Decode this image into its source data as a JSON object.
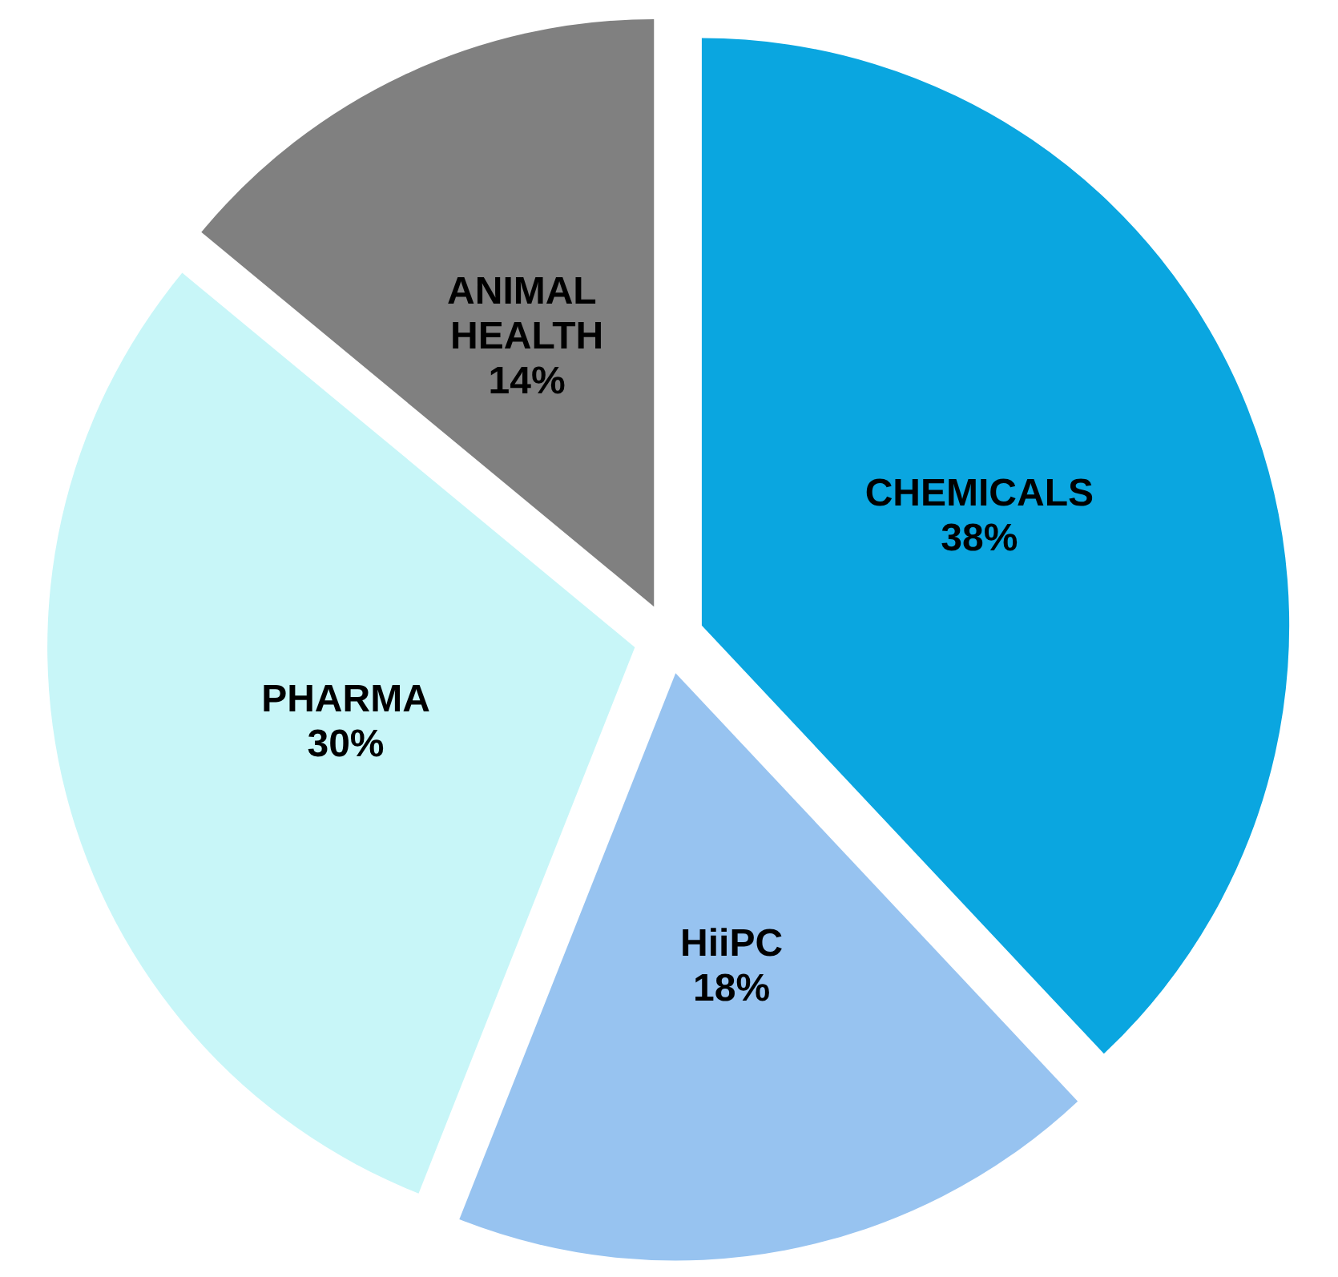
{
  "chart_data": {
    "type": "pie",
    "categories": [
      "CHEMICALS",
      "HiiPC",
      "PHARMA",
      "ANIMAL HEALTH"
    ],
    "values": [
      38,
      18,
      30,
      14
    ],
    "value_labels": [
      "38%",
      "18%",
      "30%",
      "14%"
    ],
    "colors": [
      "#0aa6e0",
      "#97c3f0",
      "#c8f6f8",
      "#808080"
    ]
  }
}
